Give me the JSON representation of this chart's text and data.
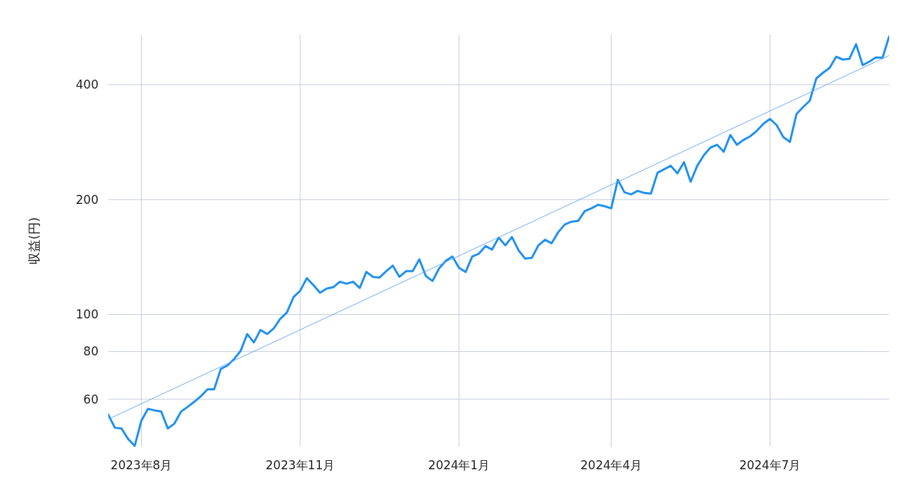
{
  "chart_data": {
    "type": "line",
    "ylabel": "収益(円)",
    "log": "y",
    "grid": true,
    "line_style": "solid",
    "marker": "none",
    "categories": [
      null,
      null,
      null,
      null,
      null,
      "2023年8月",
      null,
      null,
      null,
      null,
      null,
      null,
      null,
      null,
      null,
      null,
      null,
      null,
      null,
      null,
      null,
      null,
      null,
      null,
      null,
      null,
      null,
      null,
      null,
      "2023年11月",
      null,
      null,
      null,
      null,
      null,
      null,
      null,
      null,
      null,
      null,
      null,
      null,
      null,
      null,
      null,
      null,
      null,
      null,
      null,
      null,
      null,
      null,
      null,
      "2024年1月",
      null,
      null,
      null,
      null,
      null,
      null,
      null,
      null,
      null,
      null,
      null,
      null,
      null,
      null,
      null,
      null,
      null,
      null,
      null,
      null,
      null,
      null,
      "2024年4月",
      null,
      null,
      null,
      null,
      null,
      null,
      null,
      null,
      null,
      null,
      null,
      null,
      null,
      null,
      null,
      null,
      null,
      null,
      null,
      null,
      null,
      null,
      null,
      "2024年7月",
      null,
      null,
      null,
      null,
      null,
      null,
      null,
      null,
      null,
      null,
      null,
      null,
      null,
      null,
      null,
      null,
      null,
      null
    ],
    "ylim": [
      45,
      540
    ],
    "yticks": [
      60,
      80,
      100,
      200,
      400
    ],
    "series": [
      {
        "color": "#1e90f0",
        "values": [
          54.7,
          50.5,
          50.3,
          47.2,
          45.3,
          52.7,
          56.6,
          56.1,
          55.7,
          50.3,
          51.8,
          55.7,
          57.3,
          59.1,
          61.1,
          63.7,
          63.7,
          72.0,
          73.5,
          76.4,
          80.3,
          88.9,
          84.5,
          91.1,
          88.9,
          91.9,
          97.5,
          101.3,
          111.1,
          115.4,
          124.5,
          119.4,
          114.0,
          116.9,
          117.9,
          121.9,
          120.4,
          121.9,
          117.4,
          129.3,
          125.5,
          125.0,
          129.9,
          134.3,
          125.5,
          129.9,
          129.9,
          139.5,
          126.1,
          122.4,
          132.1,
          138.3,
          141.9,
          132.6,
          129.3,
          141.9,
          144.3,
          151.1,
          148.0,
          159.0,
          151.8,
          159.6,
          147.3,
          140.1,
          140.7,
          151.8,
          157.0,
          153.7,
          164.4,
          172.2,
          175.1,
          175.9,
          186.6,
          189.7,
          193.8,
          192.2,
          189.7,
          225.5,
          209.0,
          206.4,
          210.8,
          208.2,
          207.3,
          235.2,
          240.2,
          245.3,
          234.2,
          250.6,
          222.7,
          245.3,
          261.4,
          273.8,
          278.4,
          266.9,
          295.3,
          278.4,
          286.7,
          292.9,
          302.9,
          315.9,
          325.4,
          313.3,
          291.6,
          283.1,
          335.1,
          349.6,
          363.1,
          415.5,
          429.7,
          442.6,
          473.4,
          465.5,
          467.5,
          510.7,
          450.1,
          459.7,
          471.4,
          470.4,
          535.0
        ]
      },
      {
        "type": "line",
        "color": "#6aa8f5",
        "values": [
          53.2,
          null,
          null,
          null,
          null,
          null,
          null,
          null,
          null,
          null,
          null,
          null,
          null,
          null,
          null,
          null,
          null,
          null,
          null,
          null,
          null,
          null,
          null,
          null,
          null,
          null,
          null,
          null,
          null,
          null,
          null,
          null,
          null,
          null,
          null,
          null,
          null,
          null,
          null,
          null,
          null,
          null,
          null,
          null,
          null,
          null,
          null,
          null,
          null,
          null,
          null,
          null,
          null,
          null,
          null,
          null,
          null,
          null,
          null,
          null,
          null,
          null,
          null,
          null,
          null,
          null,
          null,
          null,
          null,
          null,
          null,
          null,
          null,
          null,
          null,
          null,
          null,
          null,
          null,
          null,
          null,
          null,
          null,
          null,
          null,
          null,
          null,
          null,
          null,
          null,
          null,
          null,
          null,
          null,
          null,
          null,
          null,
          null,
          null,
          null,
          null,
          null,
          null,
          null,
          null,
          null,
          null,
          null,
          null,
          null,
          null,
          null,
          null,
          null,
          null,
          null,
          null,
          null,
          477
        ]
      }
    ]
  }
}
